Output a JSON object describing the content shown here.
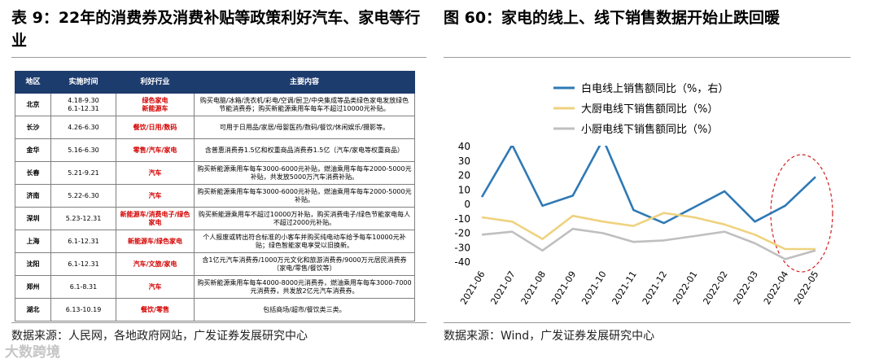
{
  "table_panel": {
    "title": "表 9：22年的消费券及消费补贴等政策利好汽车、家电等行业",
    "header": [
      "地区",
      "实施时间",
      "利好行业",
      "主要内容"
    ],
    "rows": [
      [
        "北京",
        [
          "4.18-9.30",
          "6.1-12.31"
        ],
        [
          "绿色家电",
          "新能源车"
        ],
        "购买电脑/冰箱/洗衣机/彩电/空调/厨卫/中央集成等品类绿色家电发放绿色节能消费券；购买新能源乘用车每车不超过10000元补贴。"
      ],
      [
        "长沙",
        "4.26-6.30",
        "餐饮/日用/数码",
        "可用于日用品/家居/母婴医药/数码/餐饮/休闲娱乐/摄影等。"
      ],
      [
        "金华",
        "5.16-6.30",
        "零售/汽车/家电",
        "含普惠消费券1.5亿和权重商品消费券1.5亿（汽车/家电等权重商品）"
      ],
      [
        "长春",
        "5.21-9.21",
        "汽车",
        "购买新能源乘用车每车3000-6000元补贴，燃油乘用车每车2000-5000元补贴，共发放5000万汽车消费补贴。"
      ],
      [
        "济南",
        "5.22-6.30",
        "汽车",
        "购买新能源乘用车每车3000-6000元补贴，燃油乘用车每车2000-5000元补贴。"
      ],
      [
        "深圳",
        "5.23-12.31",
        "新能源车/消费电子/绿色家电",
        "购买新能源乘用车不超过10000万补贴，购买消费电子/绿色节能家电每人不超过2000元补贴。"
      ],
      [
        "上海",
        "6.1-12.31",
        "新能源车/绿色家电",
        "个人报废或转出符合标准的小客车并购买纯电动车给予每车10000元补贴；绿色智能家电享受以旧换新。"
      ],
      [
        "沈阳",
        "6.1-12.31",
        "汽车/文旅/家电",
        "含1亿元汽车消费券/1000万元文化和旅游消费券/9000万元居民消费券（家电/零售/餐饮等）"
      ],
      [
        "郑州",
        "6.1-8.31",
        "汽车",
        "购买新能源乘用车每车4000-8000元消费券，燃油乘用车每车3000-7000元消费券，共发放2亿元汽车消费券。"
      ],
      [
        "湖北",
        "6.13-10.19",
        "餐饮/零售",
        "包括商场/超市/餐饮类三类。"
      ]
    ],
    "source": "数据来源：人民网，各地政府网站，广发证券发展研究中心"
  },
  "chart_panel": {
    "title": "图 60：家电的线上、线下销售数据开始止跌回暖",
    "source": "数据来源：Wind，广发证券发展研究中心"
  },
  "chart_data": {
    "type": "line",
    "categories": [
      "2021-06",
      "2021-07",
      "2021-08",
      "2021-09",
      "2021-10",
      "2021-11",
      "2021-12",
      "2022-01",
      "2022-02",
      "2022-03",
      "2022-04",
      "2022-05"
    ],
    "series": [
      {
        "name": "白电线上销售额同比（%，右）",
        "color": "#2f79b5",
        "values": [
          5,
          41,
          -1,
          6,
          45,
          -4,
          -13,
          -2,
          9,
          -12,
          -1,
          19
        ]
      },
      {
        "name": "大厨电线下销售额同比（%）",
        "color": "#efd27f",
        "values": [
          -9,
          -12,
          -24,
          -8,
          -12,
          -15,
          -6,
          -9,
          -14,
          -21,
          -31,
          -31
        ]
      },
      {
        "name": "小厨电线下销售额同比（%）",
        "color": "#bfbfbf",
        "values": [
          -21,
          -19,
          -32,
          -17,
          -20,
          -26,
          -25,
          -22,
          -19,
          -27,
          -38,
          -32
        ]
      }
    ],
    "ylim": [
      -40,
      40
    ],
    "yticks": [
      -40,
      -30,
      -20,
      -10,
      0,
      10,
      20,
      30,
      40
    ],
    "grid": false
  },
  "watermark": "大数跨境"
}
